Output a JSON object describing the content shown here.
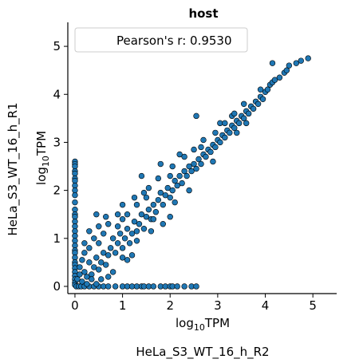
{
  "chart_data": {
    "type": "scatter",
    "title": "host",
    "xlabel_base": "log",
    "xlabel_sub": "10",
    "xlabel_unit": "TPM",
    "ylabel_base": "log",
    "ylabel_sub": "10",
    "ylabel_unit": "TPM",
    "x_sample": "HeLa_S3_WT_16_h_R2",
    "y_sample": "HeLa_S3_WT_16_h_R1",
    "legend": "Pearson's r: 0.9530",
    "legend_position": "top-left",
    "xlim": [
      -0.15,
      5.5
    ],
    "ylim": [
      -0.15,
      5.5
    ],
    "xticks": [
      0,
      1,
      2,
      3,
      4,
      5
    ],
    "yticks": [
      0,
      1,
      2,
      3,
      4,
      5
    ],
    "xtick_labels": [
      "0",
      "1",
      "2",
      "3",
      "4",
      "5"
    ],
    "ytick_labels": [
      "0",
      "1",
      "2",
      "3",
      "4",
      "5"
    ],
    "grid": false,
    "marker_color": "#1f77b4",
    "marker_edge": "#000000",
    "points": [
      [
        0,
        2.6
      ],
      [
        0,
        2.55
      ],
      [
        0,
        2.5
      ],
      [
        0,
        2.4
      ],
      [
        0,
        2.35
      ],
      [
        0,
        2.25
      ],
      [
        0,
        2.2
      ],
      [
        0,
        2.1
      ],
      [
        0,
        2.0
      ],
      [
        0,
        1.9
      ],
      [
        0,
        1.75
      ],
      [
        0,
        1.6
      ],
      [
        0,
        1.5
      ],
      [
        0,
        1.45
      ],
      [
        0,
        1.35
      ],
      [
        0,
        1.25
      ],
      [
        0,
        1.15
      ],
      [
        0,
        1.05
      ],
      [
        0,
        0.95
      ],
      [
        0,
        0.85
      ],
      [
        0,
        0.75
      ],
      [
        0,
        0.7
      ],
      [
        0,
        0.6
      ],
      [
        0,
        0.5
      ],
      [
        0,
        0.45
      ],
      [
        0,
        0.38
      ],
      [
        0,
        0.3
      ],
      [
        0,
        0.22
      ],
      [
        0,
        0.15
      ],
      [
        0,
        0.08
      ],
      [
        0,
        0.03
      ],
      [
        0.03,
        0
      ],
      [
        0.08,
        0
      ],
      [
        0.13,
        0
      ],
      [
        0.2,
        0
      ],
      [
        0.3,
        0
      ],
      [
        0.4,
        0
      ],
      [
        0.5,
        0
      ],
      [
        0.6,
        0
      ],
      [
        0.7,
        0
      ],
      [
        0.85,
        0
      ],
      [
        1.0,
        0
      ],
      [
        1.1,
        0
      ],
      [
        1.2,
        0
      ],
      [
        1.3,
        0
      ],
      [
        1.4,
        0
      ],
      [
        1.45,
        0
      ],
      [
        1.55,
        0
      ],
      [
        1.65,
        0
      ],
      [
        1.8,
        0
      ],
      [
        1.9,
        0
      ],
      [
        2.0,
        0
      ],
      [
        2.05,
        0
      ],
      [
        2.15,
        0
      ],
      [
        2.3,
        0
      ],
      [
        2.45,
        0
      ],
      [
        2.55,
        0
      ],
      [
        0.05,
        0.15
      ],
      [
        0.1,
        0.25
      ],
      [
        0.15,
        0.1
      ],
      [
        0.2,
        0.3
      ],
      [
        0.1,
        0.4
      ],
      [
        0.25,
        0.2
      ],
      [
        0.3,
        0.5
      ],
      [
        0.35,
        0.25
      ],
      [
        0.15,
        0.55
      ],
      [
        0.2,
        0.7
      ],
      [
        0.4,
        0.4
      ],
      [
        0.45,
        0.6
      ],
      [
        0.5,
        0.35
      ],
      [
        0.3,
        0.8
      ],
      [
        0.55,
        0.5
      ],
      [
        0.6,
        0.7
      ],
      [
        0.5,
        0.9
      ],
      [
        0.65,
        0.45
      ],
      [
        0.7,
        0.65
      ],
      [
        0.4,
        1.0
      ],
      [
        0.75,
        0.8
      ],
      [
        0.8,
        1.0
      ],
      [
        0.6,
        1.1
      ],
      [
        0.85,
        0.7
      ],
      [
        0.9,
        0.9
      ],
      [
        0.95,
        1.1
      ],
      [
        1.0,
        0.8
      ],
      [
        0.9,
        1.25
      ],
      [
        1.05,
        1.0
      ],
      [
        1.1,
        1.2
      ],
      [
        1.0,
        1.4
      ],
      [
        1.15,
        0.9
      ],
      [
        1.2,
        1.1
      ],
      [
        1.25,
        1.35
      ],
      [
        1.3,
        1.15
      ],
      [
        1.1,
        1.5
      ],
      [
        1.35,
        1.3
      ],
      [
        1.4,
        1.5
      ],
      [
        1.45,
        1.2
      ],
      [
        1.5,
        1.45
      ],
      [
        1.3,
        1.7
      ],
      [
        1.55,
        1.6
      ],
      [
        1.6,
        1.4
      ],
      [
        1.65,
        1.7
      ],
      [
        1.5,
        1.85
      ],
      [
        1.7,
        1.55
      ],
      [
        1.75,
        1.8
      ],
      [
        1.8,
        1.95
      ],
      [
        1.85,
        1.7
      ],
      [
        1.9,
        1.9
      ],
      [
        1.95,
        2.05
      ],
      [
        2.0,
        1.85
      ],
      [
        2.05,
        2.0
      ],
      [
        2.1,
        2.2
      ],
      [
        2.0,
        2.3
      ],
      [
        2.15,
        2.1
      ],
      [
        2.2,
        2.3
      ],
      [
        2.25,
        2.15
      ],
      [
        2.3,
        2.4
      ],
      [
        2.35,
        2.3
      ],
      [
        2.4,
        2.5
      ],
      [
        2.45,
        2.4
      ],
      [
        2.5,
        2.55
      ],
      [
        2.55,
        2.45
      ],
      [
        2.6,
        2.65
      ],
      [
        2.65,
        2.55
      ],
      [
        2.7,
        2.75
      ],
      [
        2.75,
        2.7
      ],
      [
        2.8,
        2.85
      ],
      [
        2.85,
        2.8
      ],
      [
        2.9,
        2.95
      ],
      [
        2.95,
        2.9
      ],
      [
        3.0,
        3.05
      ],
      [
        3.05,
        3.0
      ],
      [
        3.1,
        3.15
      ],
      [
        3.15,
        3.1
      ],
      [
        3.2,
        3.25
      ],
      [
        3.25,
        3.2
      ],
      [
        3.3,
        3.35
      ],
      [
        3.35,
        3.3
      ],
      [
        3.4,
        3.45
      ],
      [
        3.45,
        3.4
      ],
      [
        3.5,
        3.55
      ],
      [
        3.55,
        3.5
      ],
      [
        3.6,
        3.65
      ],
      [
        3.65,
        3.6
      ],
      [
        3.7,
        3.75
      ],
      [
        3.75,
        3.7
      ],
      [
        3.8,
        3.85
      ],
      [
        3.85,
        3.8
      ],
      [
        3.9,
        3.95
      ],
      [
        3.95,
        3.9
      ],
      [
        4.0,
        4.05
      ],
      [
        4.05,
        4.1
      ],
      [
        4.1,
        4.2
      ],
      [
        4.15,
        4.25
      ],
      [
        4.2,
        4.3
      ],
      [
        4.3,
        4.35
      ],
      [
        4.4,
        4.45
      ],
      [
        4.45,
        4.5
      ],
      [
        4.5,
        4.6
      ],
      [
        4.65,
        4.65
      ],
      [
        4.75,
        4.7
      ],
      [
        4.9,
        4.75
      ],
      [
        4.15,
        4.65
      ],
      [
        2.0,
        1.45
      ],
      [
        1.85,
        1.3
      ],
      [
        2.55,
        3.55
      ],
      [
        1.4,
        2.3
      ],
      [
        1.45,
        1.95
      ],
      [
        0.45,
        1.5
      ],
      [
        0.65,
        1.45
      ],
      [
        1.8,
        2.55
      ],
      [
        2.2,
        2.75
      ],
      [
        1.2,
        0.65
      ],
      [
        0.8,
        0.3
      ],
      [
        1.1,
        0.55
      ],
      [
        0.55,
        0.15
      ],
      [
        0.25,
        0.05
      ],
      [
        2.4,
        2.0
      ],
      [
        2.65,
        2.9
      ],
      [
        3.05,
        3.4
      ],
      [
        3.3,
        3.55
      ],
      [
        3.6,
        3.4
      ],
      [
        3.9,
        4.1
      ],
      [
        2.9,
        2.6
      ],
      [
        3.4,
        3.2
      ],
      [
        1.6,
        1.15
      ],
      [
        0.35,
        0.15
      ],
      [
        0.7,
        0.2
      ],
      [
        1.0,
        0.6
      ],
      [
        0.45,
        0.05
      ],
      [
        1.3,
        0.95
      ],
      [
        1.65,
        1.4
      ],
      [
        2.1,
        1.75
      ],
      [
        0.2,
        0.9
      ],
      [
        0.3,
        1.15
      ],
      [
        0.5,
        1.25
      ],
      [
        0.7,
        1.3
      ],
      [
        0.9,
        1.5
      ],
      [
        1.0,
        1.7
      ],
      [
        1.25,
        1.85
      ],
      [
        1.55,
        2.05
      ],
      [
        1.75,
        2.25
      ],
      [
        2.05,
        2.5
      ],
      [
        2.3,
        2.7
      ],
      [
        2.5,
        2.85
      ],
      [
        2.7,
        3.05
      ],
      [
        2.95,
        3.2
      ],
      [
        3.15,
        3.4
      ],
      [
        3.35,
        3.6
      ],
      [
        3.55,
        3.8
      ]
    ]
  }
}
